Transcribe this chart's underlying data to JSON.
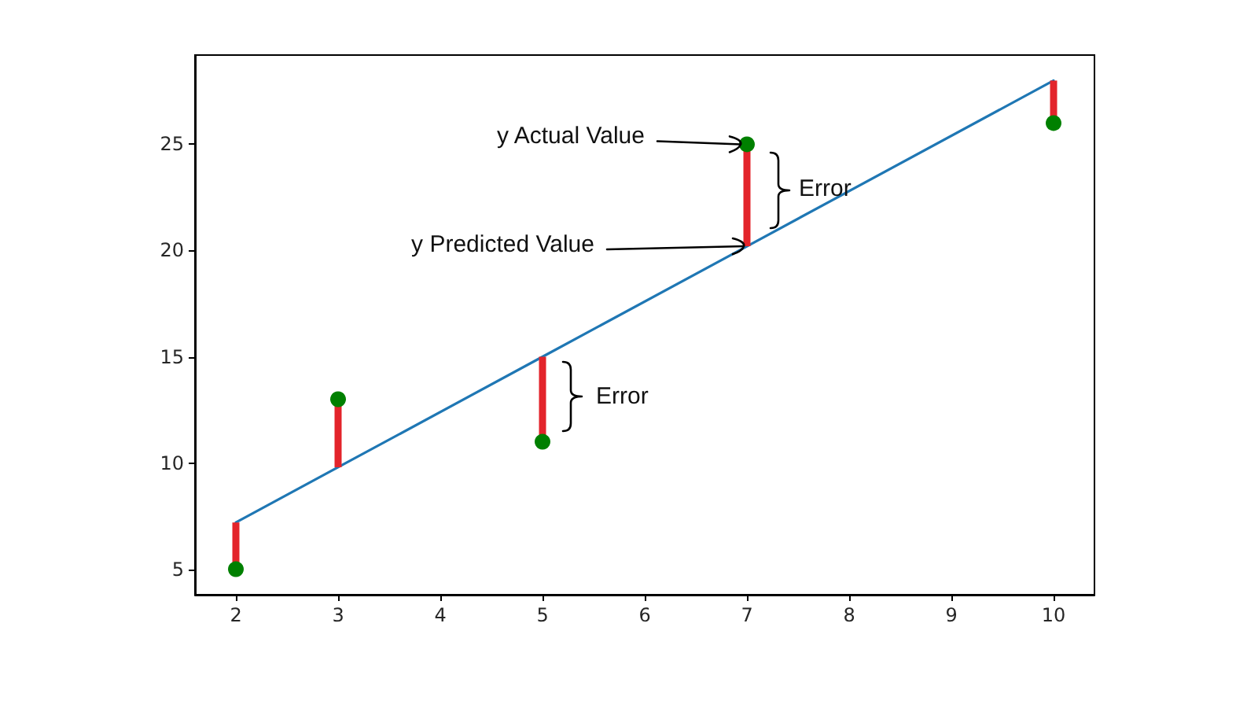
{
  "chart_data": {
    "type": "scatter",
    "xlim": [
      1.6,
      10.4
    ],
    "ylim": [
      3.8,
      29.2
    ],
    "xticks": [
      2,
      3,
      4,
      5,
      6,
      7,
      8,
      9,
      10
    ],
    "yticks": [
      5,
      10,
      15,
      20,
      25
    ],
    "series": [
      {
        "type": "line",
        "color": "#1f77b4",
        "marker": "none",
        "x": [
          2,
          3,
          5,
          7,
          10
        ],
        "values": [
          7.2,
          9.8,
          15.0,
          20.2,
          28.0
        ]
      },
      {
        "type": "bar",
        "color": "#e3242b",
        "x": [
          2,
          3,
          5,
          7,
          10
        ],
        "base": [
          5,
          13,
          11,
          25,
          26
        ],
        "values": [
          2.2,
          -3.2,
          4.0,
          -4.8,
          2.0
        ]
      },
      {
        "color": "#008000",
        "marker": "circle",
        "x": [
          2,
          3,
          5,
          7,
          10
        ],
        "values": [
          5,
          13,
          11,
          25,
          26
        ]
      }
    ],
    "annotations": [
      {
        "text": "y Actual Value",
        "x": 7,
        "y": 25
      },
      {
        "text": "y Predicted Value",
        "x": 7,
        "y": 20.2
      },
      "Error",
      "Error"
    ]
  }
}
